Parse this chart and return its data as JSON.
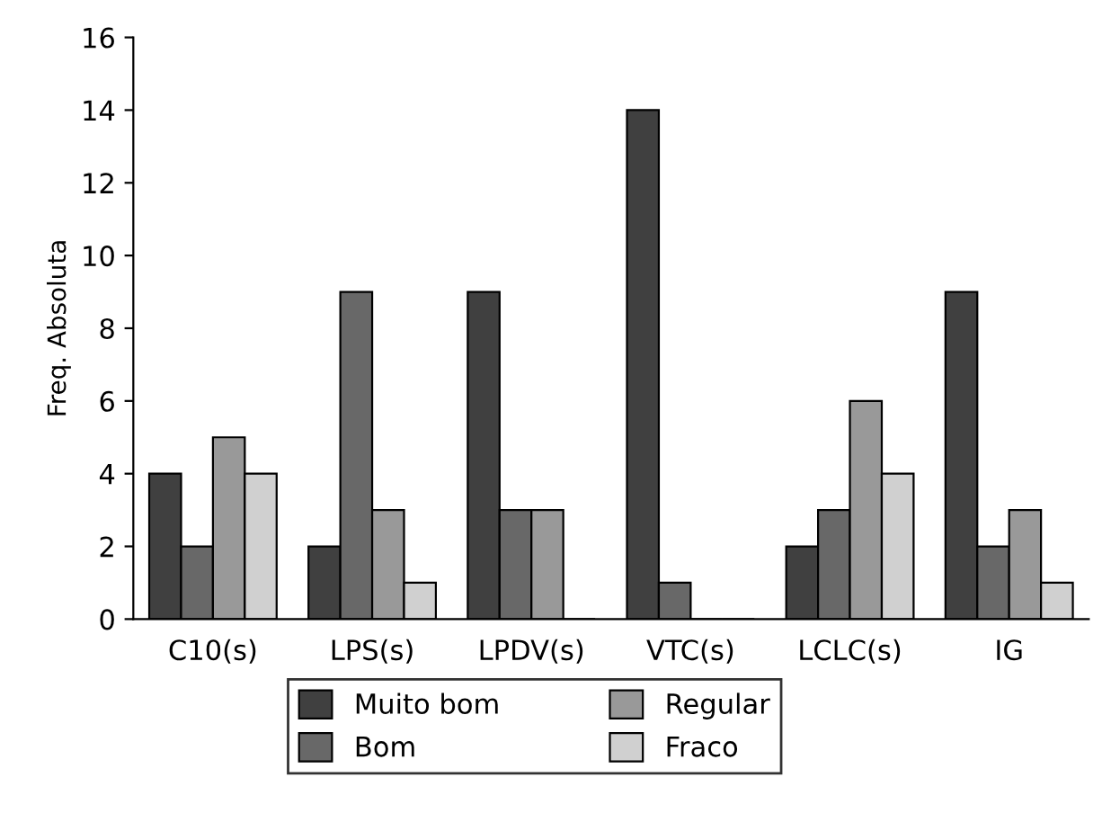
{
  "chart_data": {
    "type": "bar",
    "ylabel": "Freq. Absoluta",
    "categories": [
      "C10(s)",
      "LPS(s)",
      "LPDV(s)",
      "VTC(s)",
      "LCLC(s)",
      "IG"
    ],
    "series": [
      {
        "name": "Muito bom",
        "color": "#404040",
        "values": [
          4,
          2,
          9,
          14,
          2,
          9
        ]
      },
      {
        "name": "Bom",
        "color": "#686868",
        "values": [
          2,
          9,
          3,
          1,
          3,
          2
        ]
      },
      {
        "name": "Regular",
        "color": "#999999",
        "values": [
          5,
          3,
          3,
          0,
          6,
          3
        ]
      },
      {
        "name": "Fraco",
        "color": "#d0d0d0",
        "values": [
          4,
          1,
          0,
          0,
          4,
          1
        ]
      }
    ],
    "ylim": [
      0,
      16
    ],
    "yticks": [
      0,
      2,
      4,
      6,
      8,
      10,
      12,
      14,
      16
    ],
    "grid": false,
    "legend": "bottom"
  }
}
